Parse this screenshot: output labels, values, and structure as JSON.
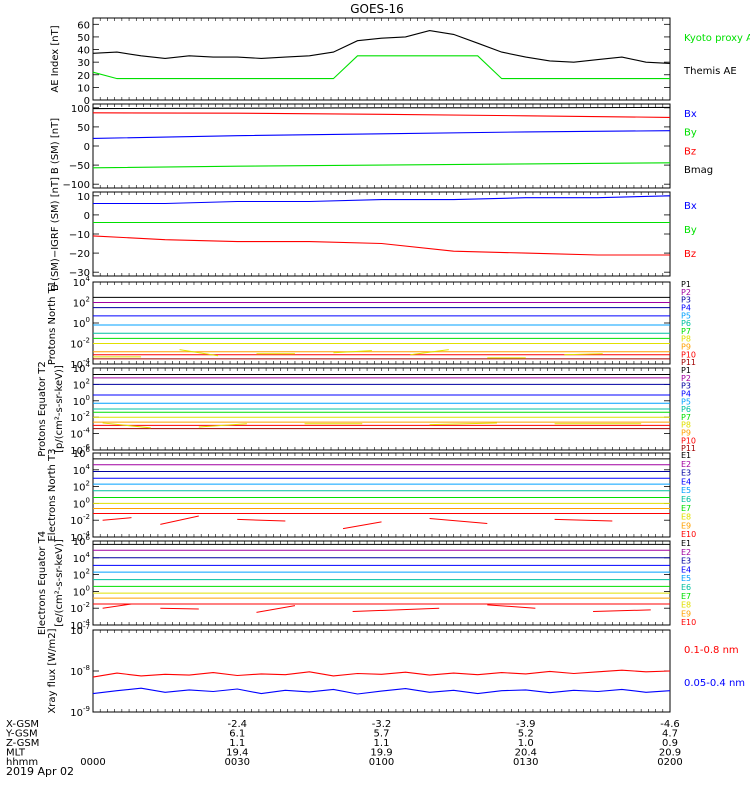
{
  "title": "GOES-16",
  "date_label": "2019 Apr 02",
  "colors": {
    "black": "#000000",
    "red": "#ff0000",
    "green": "#00e000",
    "blue": "#0000ff",
    "navy": "#0000a0",
    "cyan": "#00d0d0",
    "yellow": "#e0e000",
    "orange": "#ffa000",
    "purple": "#a000a0"
  },
  "chart_data": [
    {
      "id": "ae",
      "type": "line",
      "ylabel": "AE Index [nT]",
      "yticks": [
        "60",
        "50",
        "40",
        "30",
        "20",
        "10",
        "0"
      ],
      "ylim": [
        0,
        65
      ],
      "x": [
        0,
        5,
        10,
        15,
        20,
        25,
        30,
        35,
        40,
        45,
        50,
        55,
        60,
        65,
        70,
        75,
        80,
        85,
        90,
        95,
        100,
        105,
        110,
        115,
        120
      ],
      "legend": [
        {
          "name": "Kyoto proxy AE",
          "color": "#00e000"
        },
        {
          "name": "Themis AE",
          "color": "#000000"
        }
      ],
      "series": [
        {
          "name": "Themis AE",
          "color": "#000000",
          "values": [
            37,
            38,
            35,
            33,
            35,
            34,
            34,
            33,
            34,
            35,
            38,
            47,
            49,
            50,
            55,
            52,
            45,
            38,
            34,
            31,
            30,
            32,
            34,
            30,
            29
          ]
        },
        {
          "name": "Kyoto proxy AE",
          "color": "#00e000",
          "values": [
            22,
            17,
            17,
            17,
            17,
            17,
            17,
            17,
            17,
            17,
            17,
            35,
            35,
            35,
            35,
            35,
            35,
            17,
            17,
            17,
            17,
            17,
            17,
            17,
            17
          ]
        }
      ]
    },
    {
      "id": "b",
      "type": "line",
      "ylabel": "B (SM) [nT]",
      "yticks": [
        "100",
        "50",
        "0",
        "−50",
        "−100"
      ],
      "ylim": [
        -110,
        110
      ],
      "x": [
        0,
        30,
        60,
        90,
        120
      ],
      "legend": [
        {
          "name": "Bx",
          "color": "#0000ff"
        },
        {
          "name": "By",
          "color": "#00e000"
        },
        {
          "name": "Bz",
          "color": "#ff0000"
        },
        {
          "name": "Bmag",
          "color": "#000000"
        }
      ],
      "series": [
        {
          "name": "Bmag",
          "color": "#000000",
          "values": [
            98,
            99,
            100,
            100,
            101
          ]
        },
        {
          "name": "Bz",
          "color": "#ff0000",
          "values": [
            87,
            86,
            83,
            79,
            75
          ]
        },
        {
          "name": "Bx",
          "color": "#0000ff",
          "values": [
            20,
            27,
            32,
            37,
            40
          ]
        },
        {
          "name": "By",
          "color": "#00e000",
          "values": [
            -57,
            -53,
            -50,
            -47,
            -44
          ]
        }
      ]
    },
    {
      "id": "bdiff",
      "type": "line",
      "ylabel": "B (SM)−IGRF (SM) [nT]",
      "yticks": [
        "10",
        "0",
        "−10",
        "−20",
        "−30"
      ],
      "ylim": [
        -32,
        12
      ],
      "x": [
        0,
        15,
        30,
        45,
        60,
        75,
        90,
        105,
        120
      ],
      "legend": [
        {
          "name": "Bx",
          "color": "#0000ff"
        },
        {
          "name": "By",
          "color": "#00e000"
        },
        {
          "name": "Bz",
          "color": "#ff0000"
        }
      ],
      "series": [
        {
          "name": "Bx",
          "color": "#0000ff",
          "values": [
            6,
            6,
            7,
            7,
            8,
            8,
            9,
            9,
            10
          ]
        },
        {
          "name": "By",
          "color": "#00e000",
          "values": [
            -4,
            -4,
            -4,
            -4,
            -4,
            -4,
            -4,
            -4,
            -4
          ]
        },
        {
          "name": "Bz",
          "color": "#ff0000",
          "values": [
            -11,
            -13,
            -14,
            -14,
            -15,
            -19,
            -20,
            -21,
            -21
          ]
        }
      ]
    },
    {
      "id": "pn",
      "type": "line",
      "log": true,
      "ylabel": "Protons North T1",
      "ymin_exp": -4,
      "ymax_exp": 4,
      "ytick_exps": [
        -4,
        -2,
        0,
        2,
        4
      ],
      "channels": [
        "P1",
        "P2",
        "P3",
        "P4",
        "P5",
        "P6",
        "P7",
        "P8",
        "P9",
        "P10",
        "P11"
      ],
      "channel_colors": [
        "#000000",
        "#a000a0",
        "#0000a0",
        "#0000ff",
        "#00a0ff",
        "#00c0a0",
        "#00e000",
        "#e0e000",
        "#ffa000",
        "#ff0000",
        "#a00000"
      ],
      "levels": [
        2.5,
        2.0,
        1.5,
        0.7,
        -0.2,
        -1.0,
        -1.5,
        -2.0,
        -2.8,
        -3.1,
        -3.5
      ],
      "sparse": [
        {
          "color": "#e0e000",
          "points": [
            [
              0,
              -3.3
            ],
            [
              10,
              -3.3
            ],
            [
              18,
              -2.6
            ],
            [
              26,
              -3.2
            ],
            [
              34,
              -3.0
            ],
            [
              42,
              -3.0
            ],
            [
              50,
              -2.9
            ],
            [
              58,
              -2.7
            ],
            [
              66,
              -3.1
            ],
            [
              74,
              -2.6
            ],
            [
              82,
              -3.4
            ],
            [
              90,
              -3.4
            ],
            [
              98,
              -3.1
            ],
            [
              106,
              -3.0
            ]
          ]
        }
      ]
    },
    {
      "id": "pe",
      "type": "line",
      "log": true,
      "ylabel": "Protons Equator T2",
      "unit_label": "[p/(cm²-s-sr-keV)]",
      "ymin_exp": -6,
      "ymax_exp": 4,
      "ytick_exps": [
        -6,
        -4,
        -2,
        0,
        2,
        4
      ],
      "channels": [
        "P1",
        "P2",
        "P3",
        "P4",
        "P5",
        "P6",
        "P7",
        "P8",
        "P9",
        "P10",
        "P11"
      ],
      "channel_colors": [
        "#000000",
        "#a000a0",
        "#0000a0",
        "#0000ff",
        "#00a0ff",
        "#00c0a0",
        "#00e000",
        "#e0e000",
        "#ffa000",
        "#ff0000",
        "#a00000"
      ],
      "levels": [
        3.2,
        2.8,
        2.0,
        0.7,
        -0.3,
        -1.0,
        -1.4,
        -2.0,
        -2.6,
        -3.0,
        -3.4
      ],
      "sparse": [
        {
          "color": "#e0e000",
          "points": [
            [
              2,
              -2.7
            ],
            [
              12,
              -3.3
            ],
            [
              22,
              -3.2
            ],
            [
              32,
              -2.8
            ],
            [
              44,
              -2.8
            ],
            [
              56,
              -2.8
            ],
            [
              70,
              -2.9
            ],
            [
              84,
              -2.7
            ],
            [
              96,
              -2.8
            ],
            [
              114,
              -2.8
            ]
          ]
        }
      ]
    },
    {
      "id": "en",
      "type": "line",
      "log": true,
      "ylabel": "Electrons North T3",
      "ymin_exp": -4,
      "ymax_exp": 6,
      "ytick_exps": [
        -4,
        -2,
        0,
        2,
        4,
        6
      ],
      "channels": [
        "E1",
        "E2",
        "E3",
        "E4",
        "E5",
        "E6",
        "E7",
        "E8",
        "E9",
        "E10"
      ],
      "channel_colors": [
        "#000000",
        "#a000a0",
        "#0000a0",
        "#0000ff",
        "#00a0ff",
        "#00c0a0",
        "#00e000",
        "#e0e000",
        "#ffa000",
        "#ff0000"
      ],
      "levels": [
        5.3,
        4.6,
        3.8,
        3.0,
        2.3,
        1.5,
        0.7,
        0.0,
        -0.6,
        -1.2
      ],
      "sparse": [
        {
          "color": "#ff0000",
          "points": [
            [
              2,
              -2.0
            ],
            [
              8,
              -1.7
            ],
            [
              14,
              -2.5
            ],
            [
              22,
              -1.5
            ],
            [
              30,
              -1.9
            ],
            [
              40,
              -2.1
            ],
            [
              52,
              -3.0
            ],
            [
              60,
              -2.2
            ],
            [
              70,
              -1.8
            ],
            [
              82,
              -2.4
            ],
            [
              96,
              -1.9
            ],
            [
              108,
              -2.1
            ],
            [
              116,
              -1.9
            ]
          ]
        }
      ]
    },
    {
      "id": "ee",
      "type": "line",
      "log": true,
      "ylabel": "Electrons Equator T4",
      "unit_label": "[e/(cm²-s-sr-keV)]",
      "ymin_exp": -4,
      "ymax_exp": 6,
      "ytick_exps": [
        -4,
        -2,
        0,
        2,
        4,
        6
      ],
      "channels": [
        "E1",
        "E2",
        "E3",
        "E4",
        "E5",
        "E6",
        "E7",
        "E8",
        "E9",
        "E10"
      ],
      "channel_colors": [
        "#000000",
        "#a000a0",
        "#0000a0",
        "#0000ff",
        "#00a0ff",
        "#00c0a0",
        "#00e000",
        "#e0e000",
        "#ffa000",
        "#ff0000"
      ],
      "levels": [
        5.6,
        4.9,
        4.0,
        3.1,
        2.3,
        1.4,
        0.6,
        -0.2,
        -0.8,
        -1.5
      ],
      "sparse": [
        {
          "color": "#ff0000",
          "points": [
            [
              2,
              -2.0
            ],
            [
              8,
              -1.5
            ],
            [
              14,
              -2.0
            ],
            [
              22,
              -2.1
            ],
            [
              34,
              -2.5
            ],
            [
              42,
              -1.7
            ],
            [
              54,
              -2.4
            ],
            [
              72,
              -2.0
            ],
            [
              82,
              -1.6
            ],
            [
              92,
              -2.0
            ],
            [
              104,
              -2.4
            ],
            [
              116,
              -2.2
            ]
          ]
        }
      ]
    },
    {
      "id": "xray",
      "type": "line",
      "log": true,
      "ylabel": "Xray flux [W/m2]",
      "ymin_exp": -9,
      "ymax_exp": -7,
      "ytick_exps": [
        -9,
        -8,
        -7
      ],
      "legend": [
        {
          "name": "0.1-0.8 nm",
          "color": "#ff0000"
        },
        {
          "name": "0.05-0.4 nm",
          "color": "#0000ff"
        }
      ],
      "series": [
        {
          "name": "0.1-0.8 nm",
          "color": "#ff0000",
          "values": [
            -8.15,
            -8.05,
            -8.12,
            -8.08,
            -8.1,
            -8.04,
            -8.11,
            -8.07,
            -8.09,
            -8.02,
            -8.12,
            -8.06,
            -8.08,
            -8.03,
            -8.1,
            -8.05,
            -8.09,
            -8.04,
            -8.07,
            -8.01,
            -8.06,
            -8.02,
            -7.98,
            -8.02,
            -8.0
          ]
        },
        {
          "name": "0.05-0.4 nm",
          "color": "#0000ff",
          "values": [
            -8.55,
            -8.48,
            -8.42,
            -8.52,
            -8.46,
            -8.5,
            -8.44,
            -8.55,
            -8.47,
            -8.51,
            -8.45,
            -8.56,
            -8.49,
            -8.43,
            -8.52,
            -8.47,
            -8.55,
            -8.48,
            -8.46,
            -8.53,
            -8.47,
            -8.5,
            -8.45,
            -8.52,
            -8.48
          ]
        }
      ]
    }
  ],
  "footer": {
    "rows": [
      {
        "label": "X-GSM",
        "values": [
          "-2.4",
          "-3.2",
          "-3.9",
          "-4.6"
        ]
      },
      {
        "label": "Y-GSM",
        "values": [
          "6.1",
          "5.7",
          "5.2",
          "4.7"
        ]
      },
      {
        "label": "Z-GSM",
        "values": [
          "1.1",
          "1.1",
          "1.0",
          "0.9"
        ]
      },
      {
        "label": "MLT",
        "values": [
          "19.4",
          "19.9",
          "20.4",
          "20.9"
        ]
      },
      {
        "label": "hhmm",
        "values": [
          "0030",
          "0100",
          "0130",
          "0200"
        ],
        "first": "0000"
      }
    ]
  }
}
